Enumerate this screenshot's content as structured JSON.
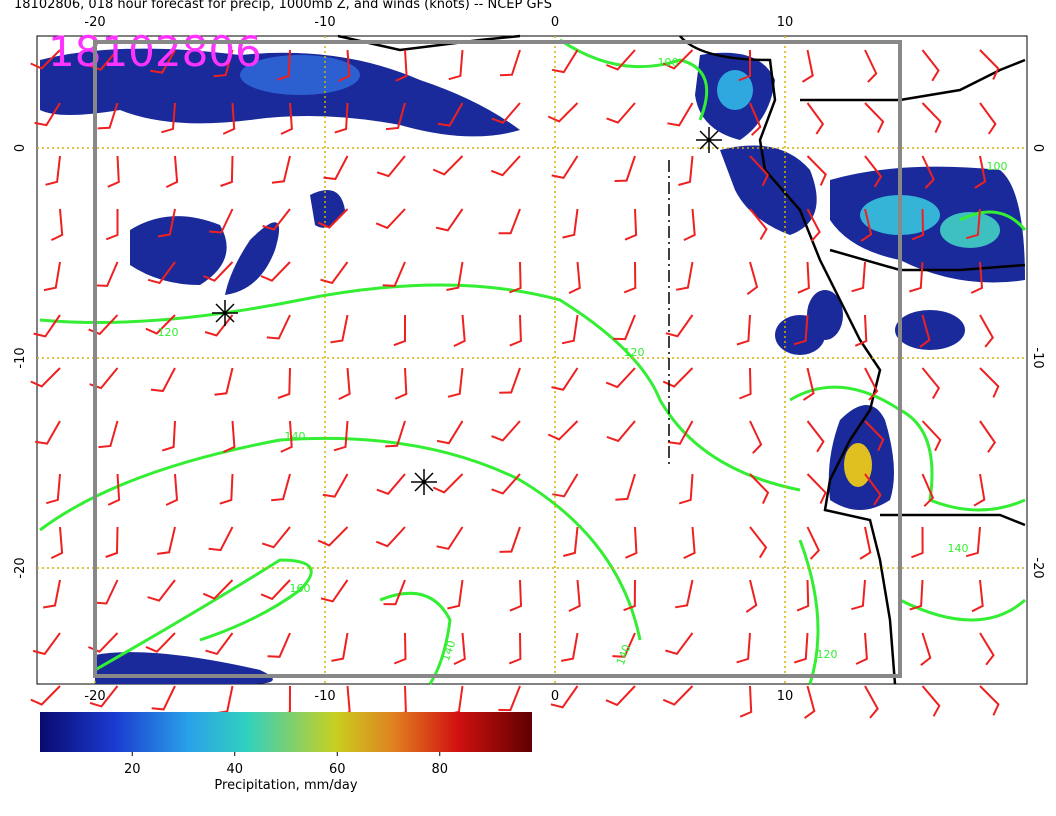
{
  "title": "18102806, 018 hour forecast for precip, 1000mb Z, and winds (knots) -- NCEP GFS",
  "stamp": "18102806",
  "x_ticks": [
    -20,
    -10,
    0,
    10
  ],
  "y_ticks": [
    0,
    -10,
    -20
  ],
  "contour_labels": [
    100,
    100,
    120,
    120,
    120,
    140,
    140,
    140,
    140,
    160
  ],
  "colorbar": {
    "label": "Precipitation, mm/day",
    "ticks": [
      20,
      40,
      60,
      80
    ],
    "lim": [
      2,
      98
    ]
  }
}
